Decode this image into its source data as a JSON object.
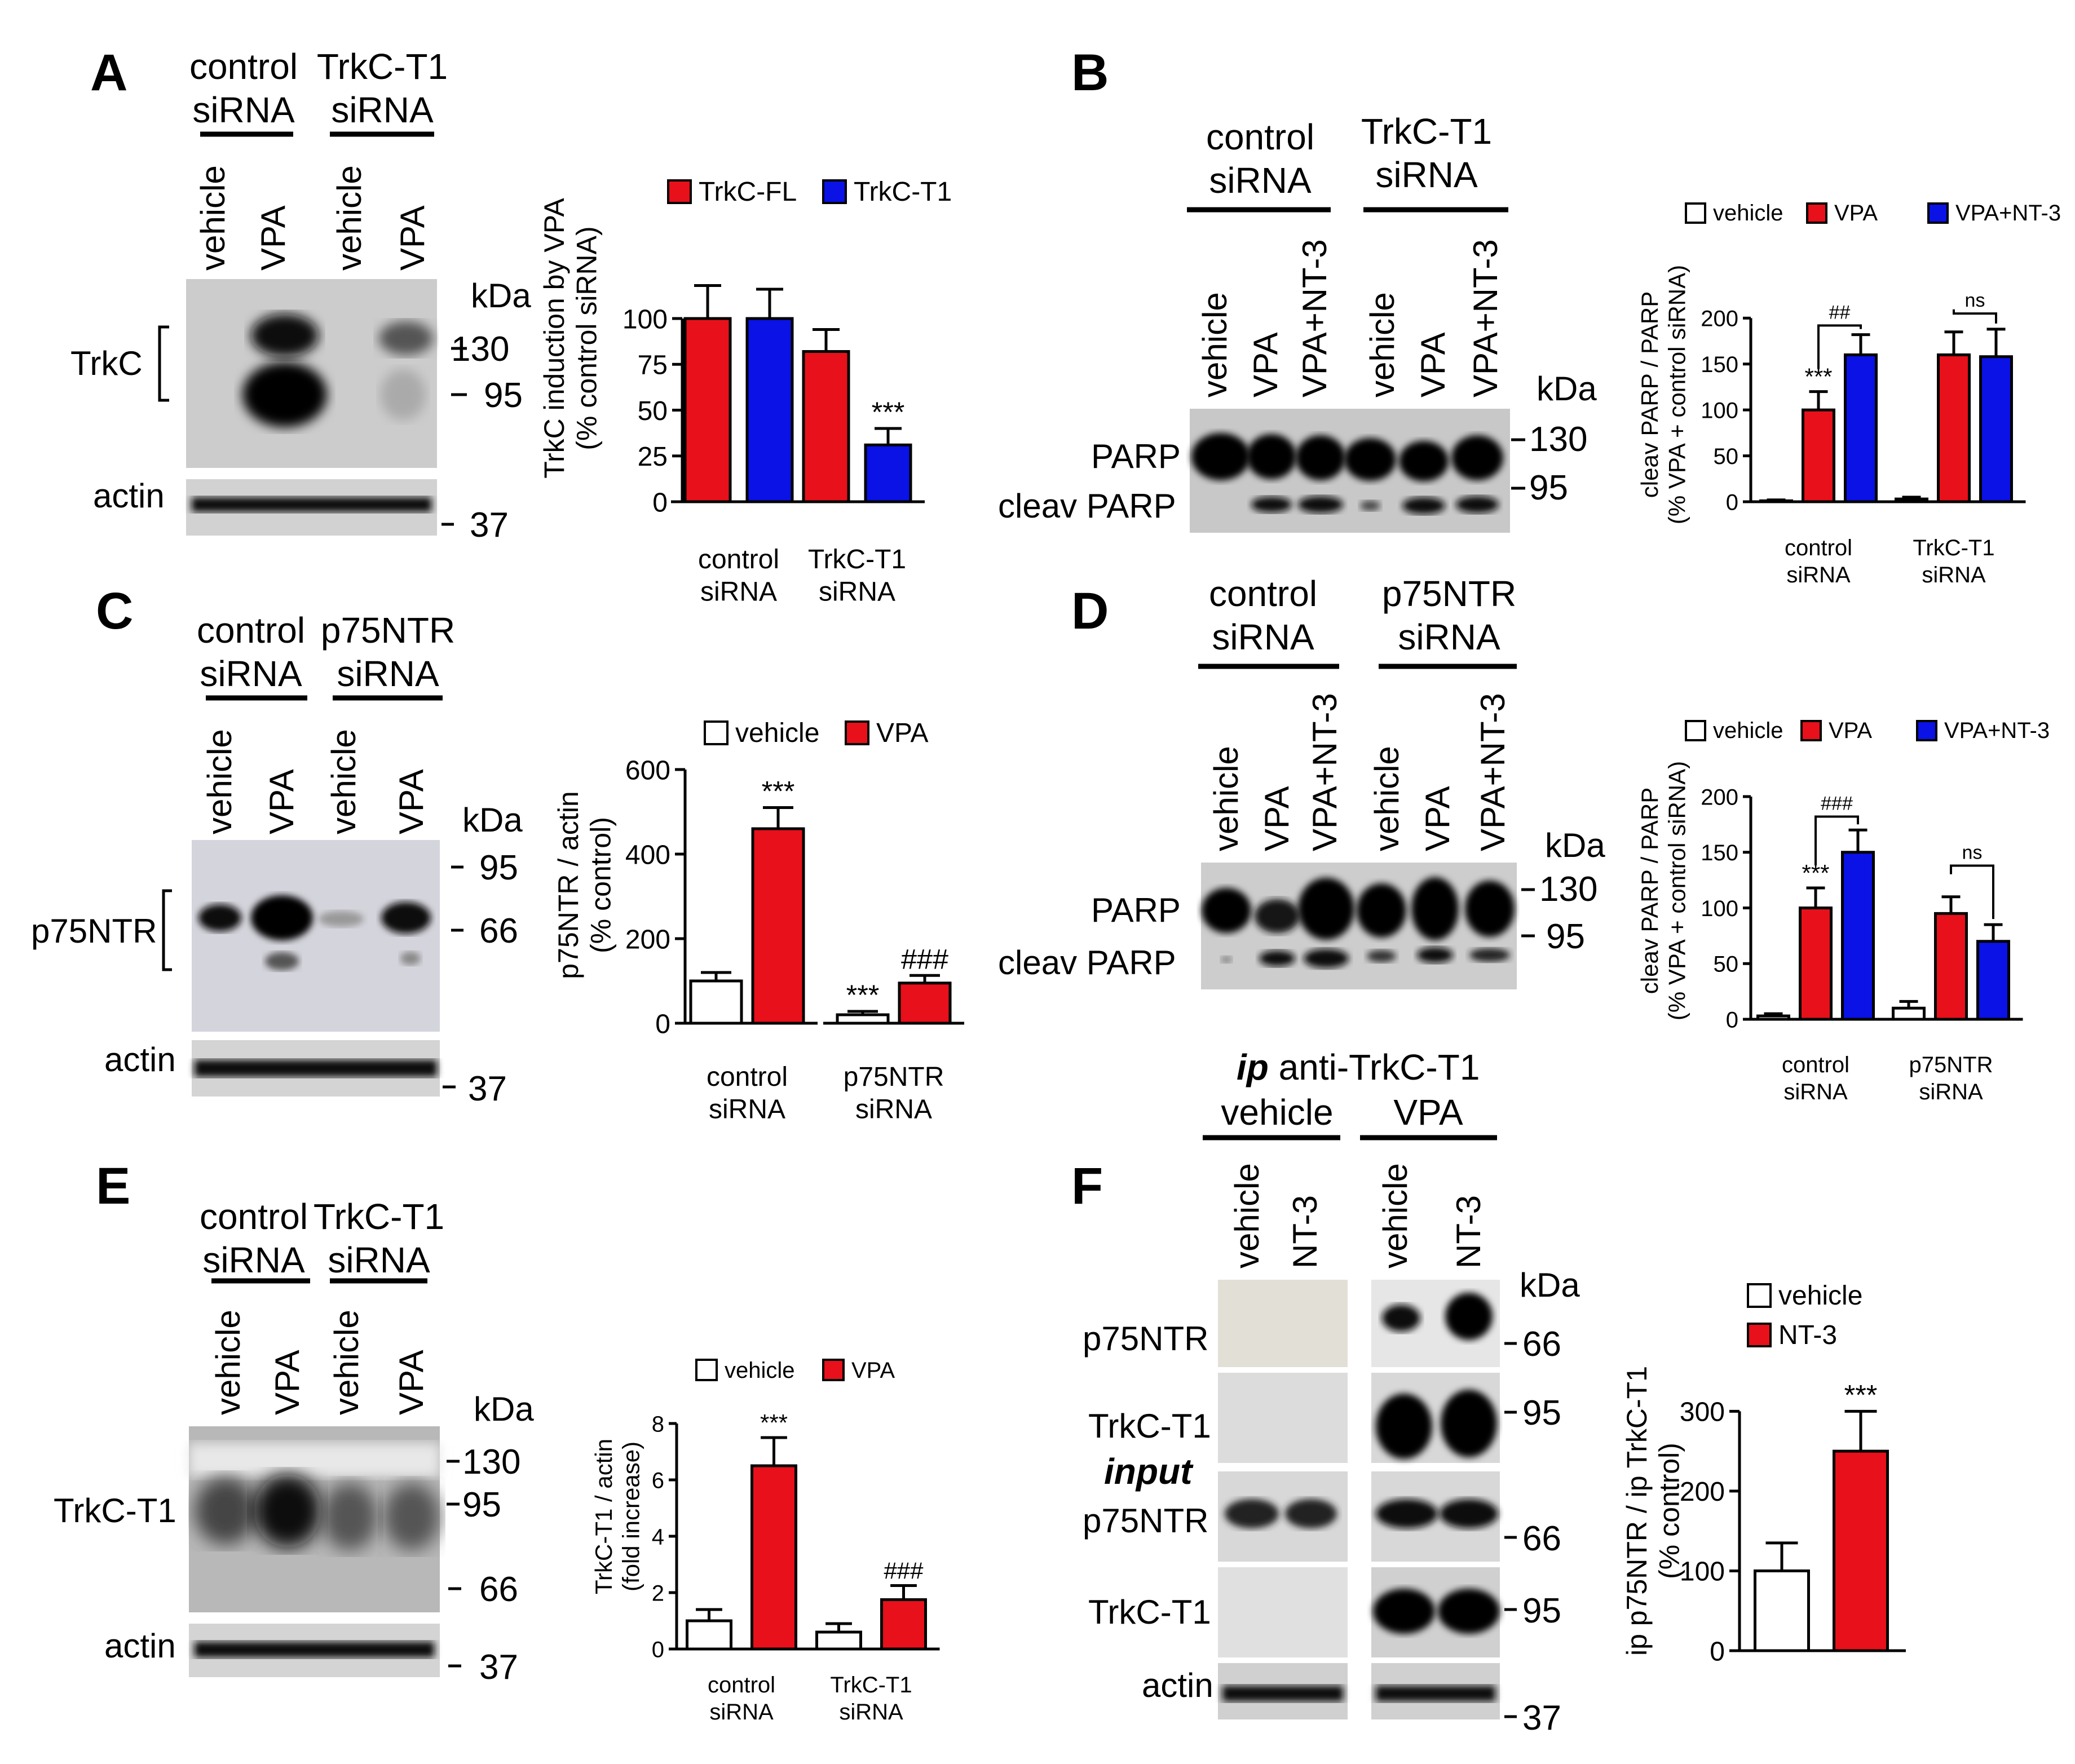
{
  "colors": {
    "vehicle": "#ffffff",
    "red": "#e8101a",
    "blue": "#0a12e6",
    "stroke": "#000000"
  },
  "panels": {
    "A": {
      "label": "A",
      "groups": [
        "control\nsiRNA",
        "TrkC-T1\nsiRNA"
      ],
      "lanes": [
        "vehicle",
        "VPA",
        "vehicle",
        "VPA"
      ],
      "kda": "kDa",
      "markers": [
        "130",
        "95",
        "37"
      ],
      "row_labels": [
        "TrkC",
        "actin"
      ]
    },
    "B": {
      "label": "B",
      "groups": [
        "control\nsiRNA",
        "TrkC-T1\nsiRNA"
      ],
      "lanes": [
        "vehicle",
        "VPA",
        "VPA+NT-3",
        "vehicle",
        "VPA",
        "VPA+NT-3"
      ],
      "kda": "kDa",
      "markers": [
        "130",
        "95"
      ],
      "row_labels": [
        "PARP",
        "cleav PARP"
      ]
    },
    "C": {
      "label": "C",
      "groups": [
        "control\nsiRNA",
        "p75NTR\nsiRNA"
      ],
      "lanes": [
        "vehicle",
        "VPA",
        "vehicle",
        "VPA"
      ],
      "kda": "kDa",
      "markers": [
        "95",
        "66",
        "37"
      ],
      "row_labels": [
        "p75NTR",
        "actin"
      ]
    },
    "D": {
      "label": "D",
      "groups": [
        "control\nsiRNA",
        "p75NTR\nsiRNA"
      ],
      "lanes": [
        "vehicle",
        "VPA",
        "VPA+NT-3",
        "vehicle",
        "VPA",
        "VPA+NT-3"
      ],
      "kda": "kDa",
      "markers": [
        "130",
        "95"
      ],
      "row_labels": [
        "PARP",
        "cleav PARP"
      ]
    },
    "E": {
      "label": "E",
      "groups": [
        "control\nsiRNA",
        "TrkC-T1\nsiRNA"
      ],
      "lanes": [
        "vehicle",
        "VPA",
        "vehicle",
        "VPA"
      ],
      "kda": "kDa",
      "markers": [
        "130",
        "95",
        "66",
        "37"
      ],
      "row_labels": [
        "TrkC-T1",
        "actin"
      ]
    },
    "F": {
      "label": "F",
      "ip_prefix": "ip",
      "ip_title": " anti-TrkC-T1",
      "groups": [
        "vehicle",
        "VPA"
      ],
      "lanes": [
        "vehicle",
        "NT-3",
        "vehicle",
        "NT-3"
      ],
      "kda": "kDa",
      "input_label": "input",
      "markers": [
        "66",
        "95",
        "66",
        "95",
        "37"
      ],
      "row_labels": [
        "p75NTR",
        "TrkC-T1",
        "p75NTR",
        "TrkC-T1",
        "actin"
      ]
    }
  },
  "chart_data": [
    {
      "panel": "A",
      "type": "bar",
      "categories": [
        "control\nsiRNA",
        "TrkC-T1\nsiRNA"
      ],
      "series": [
        {
          "name": "TrkC-FL",
          "color": "red",
          "values": [
            100,
            82
          ],
          "errors": [
            18,
            12
          ]
        },
        {
          "name": "TrkC-T1",
          "color": "blue",
          "values": [
            100,
            31
          ],
          "errors": [
            16,
            9
          ]
        }
      ],
      "ylabel": "TrkC induction by VPA\n(% control siRNA)",
      "ylim": [
        0,
        120
      ],
      "yticks": [
        0,
        25,
        50,
        75,
        100
      ],
      "annotations": [
        {
          "text": "***",
          "group": 1,
          "series": 1
        }
      ]
    },
    {
      "panel": "B",
      "type": "bar",
      "categories": [
        "control\nsiRNA",
        "TrkC-T1\nsiRNA"
      ],
      "series": [
        {
          "name": "vehicle",
          "color": "vehicle",
          "values": [
            1,
            3
          ],
          "errors": [
            1,
            2
          ]
        },
        {
          "name": "VPA",
          "color": "red",
          "values": [
            100,
            160
          ],
          "errors": [
            20,
            25
          ]
        },
        {
          "name": "VPA+NT-3",
          "color": "blue",
          "values": [
            160,
            158
          ],
          "errors": [
            22,
            30
          ]
        }
      ],
      "ylabel": "cleav PARP / PARP\n(% VPA + control siRNA)",
      "ylim": [
        0,
        210
      ],
      "yticks": [
        0,
        50,
        100,
        150,
        200
      ],
      "annotations": [
        {
          "text": "***",
          "group": 0,
          "series": 1
        }
      ],
      "brackets": [
        {
          "text": "##",
          "group": 0,
          "from": 1,
          "to": 2,
          "y": 192
        },
        {
          "text": "ns",
          "group": 1,
          "from": 1,
          "to": 2,
          "y": 205
        }
      ]
    },
    {
      "panel": "C",
      "type": "bar",
      "categories": [
        "control\nsiRNA",
        "p75NTR\nsiRNA"
      ],
      "series": [
        {
          "name": "vehicle",
          "color": "vehicle",
          "values": [
            100,
            20
          ],
          "errors": [
            20,
            8
          ]
        },
        {
          "name": "VPA",
          "color": "red",
          "values": [
            460,
            95
          ],
          "errors": [
            50,
            18
          ]
        }
      ],
      "ylabel": "p75NTR / actin\n(% control)",
      "ylim": [
        0,
        600
      ],
      "yticks": [
        0,
        200,
        400,
        600
      ],
      "annotations": [
        {
          "text": "***",
          "group": 0,
          "series": 1
        },
        {
          "text": "***",
          "group": 1,
          "series": 0
        },
        {
          "text": "###",
          "group": 1,
          "series": 1
        }
      ]
    },
    {
      "panel": "D",
      "type": "bar",
      "categories": [
        "control\nsiRNA",
        "p75NTR\nsiRNA"
      ],
      "series": [
        {
          "name": "vehicle",
          "color": "vehicle",
          "values": [
            3,
            10
          ],
          "errors": [
            2,
            6
          ]
        },
        {
          "name": "VPA",
          "color": "red",
          "values": [
            100,
            95
          ],
          "errors": [
            18,
            15
          ]
        },
        {
          "name": "VPA+NT-3",
          "color": "blue",
          "values": [
            150,
            70
          ],
          "errors": [
            20,
            15
          ]
        }
      ],
      "ylabel": "cleav PARP / PARP\n(% VPA + control siRNA)",
      "ylim": [
        0,
        200
      ],
      "yticks": [
        0,
        50,
        100,
        150,
        200
      ],
      "annotations": [
        {
          "text": "***",
          "group": 0,
          "series": 1
        }
      ],
      "brackets": [
        {
          "text": "###",
          "group": 0,
          "from": 1,
          "to": 2,
          "y": 182
        },
        {
          "text": "ns",
          "group": 1,
          "from": 1,
          "to": 2,
          "y": 138
        }
      ]
    },
    {
      "panel": "E",
      "type": "bar",
      "categories": [
        "control\nsiRNA",
        "TrkC-T1\nsiRNA"
      ],
      "series": [
        {
          "name": "vehicle",
          "color": "vehicle",
          "values": [
            1,
            0.6
          ],
          "errors": [
            0.4,
            0.3
          ]
        },
        {
          "name": "VPA",
          "color": "red",
          "values": [
            6.5,
            1.75
          ],
          "errors": [
            1,
            0.5
          ]
        }
      ],
      "ylabel": "TrkC-T1 / actin\n(fold increase)",
      "ylim": [
        0,
        8
      ],
      "yticks": [
        0,
        2,
        4,
        6,
        8
      ],
      "annotations": [
        {
          "text": "***",
          "group": 0,
          "series": 1
        },
        {
          "text": "###",
          "group": 1,
          "series": 1
        }
      ]
    },
    {
      "panel": "F",
      "type": "bar",
      "categories": [
        ""
      ],
      "series": [
        {
          "name": "vehicle",
          "color": "vehicle",
          "values": [
            100
          ],
          "errors": [
            35
          ]
        },
        {
          "name": "NT-3",
          "color": "red",
          "values": [
            250
          ],
          "errors": [
            50
          ]
        }
      ],
      "ylabel": "ip p75NTR / ip TrkC-T1\n(% control)",
      "ylim": [
        0,
        320
      ],
      "yticks": [
        0,
        100,
        200,
        300
      ],
      "annotations": [
        {
          "text": "***",
          "group": 0,
          "series": 1
        }
      ]
    }
  ]
}
